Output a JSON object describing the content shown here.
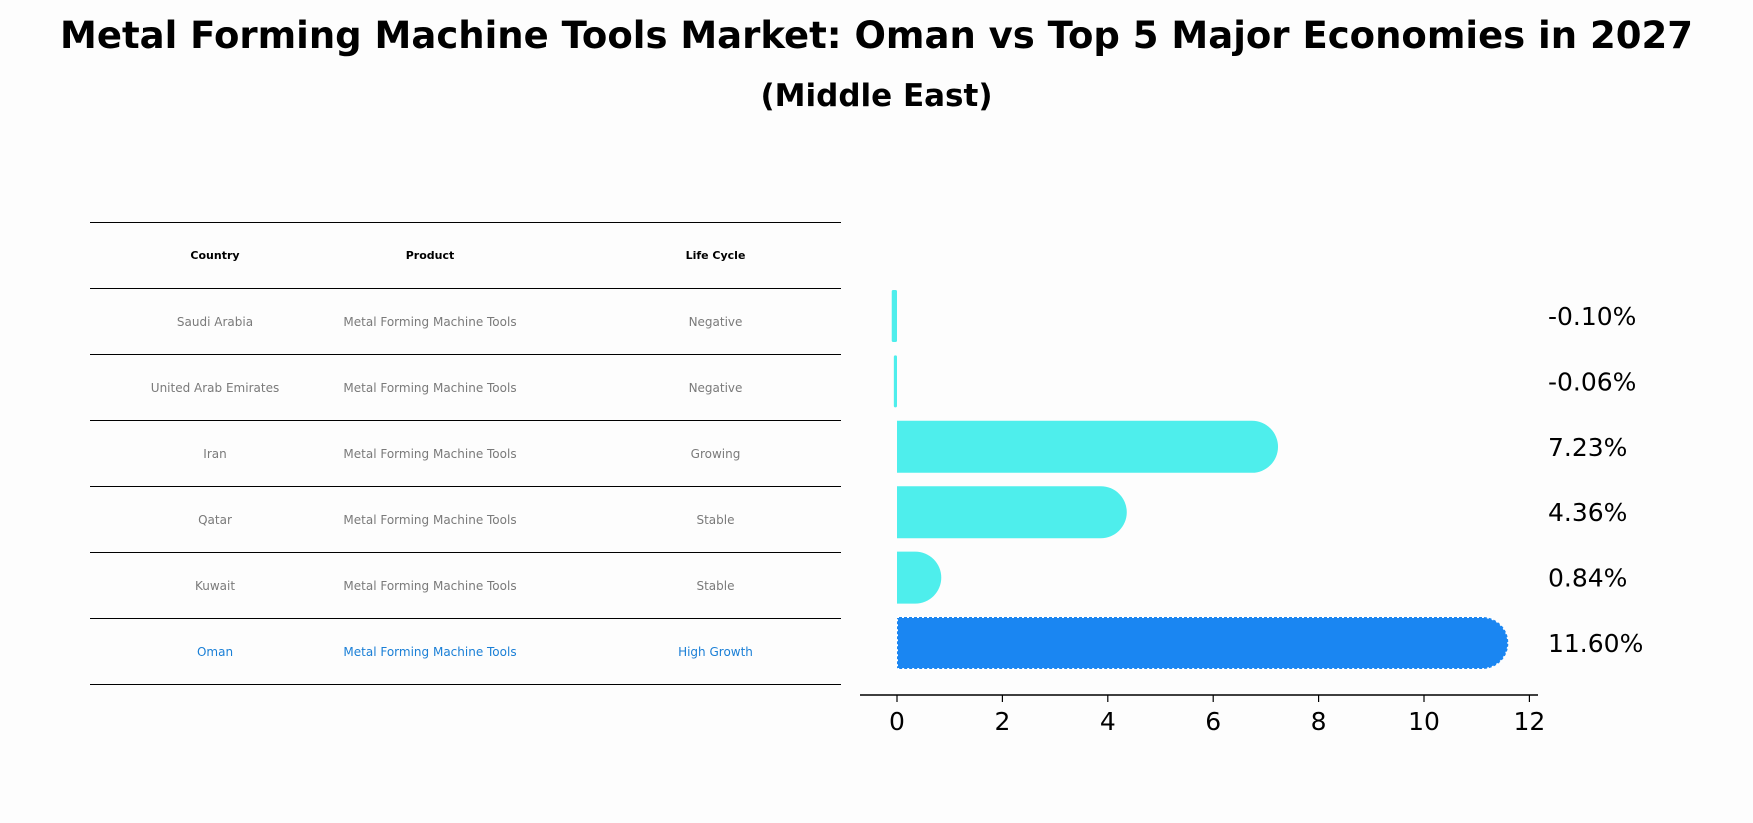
{
  "title": "Metal Forming Machine Tools Market: Oman vs Top 5 Major Economies in 2027",
  "subtitle": "(Middle East)",
  "table": {
    "headers": [
      "Country",
      "Product",
      "Life Cycle"
    ],
    "rows": [
      [
        "Saudi Arabia",
        "Metal Forming Machine Tools",
        "Negative"
      ],
      [
        "United Arab Emirates",
        "Metal Forming Machine Tools",
        "Negative"
      ],
      [
        "Iran",
        "Metal Forming Machine Tools",
        "Growing"
      ],
      [
        "Qatar",
        "Metal Forming Machine Tools",
        "Stable"
      ],
      [
        "Kuwait",
        "Metal Forming Machine Tools",
        "Stable"
      ],
      [
        "Oman",
        "Metal Forming Machine Tools",
        "High Growth"
      ]
    ]
  },
  "chart_data": {
    "type": "bar",
    "orientation": "horizontal",
    "categories": [
      "Saudi Arabia",
      "United Arab Emirates",
      "Iran",
      "Qatar",
      "Kuwait",
      "Oman"
    ],
    "values": [
      -0.1,
      -0.06,
      7.23,
      4.36,
      0.84,
      11.6
    ],
    "value_labels": [
      "-0.10%",
      "-0.06%",
      "7.23%",
      "4.36%",
      "0.84%",
      "11.60%"
    ],
    "xticks": [
      "0",
      "2",
      "4",
      "6",
      "8",
      "10",
      "12"
    ],
    "xlim": [
      -0.7,
      12.2
    ],
    "highlight": "Oman",
    "colors": {
      "default": "#4eeeec",
      "highlight": "#1a86f2"
    }
  }
}
